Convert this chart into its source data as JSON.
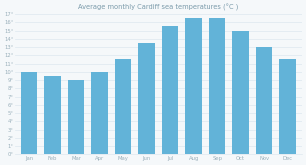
{
  "title": "Average monthly Cardiff sea temperatures (°C )",
  "months": [
    "Jan",
    "Feb",
    "Mar",
    "Apr",
    "May",
    "Jun",
    "Jul",
    "Aug",
    "Sep",
    "Oct",
    "Nov",
    "Dec"
  ],
  "values": [
    10,
    9.5,
    9,
    10,
    11.5,
    13.5,
    15.5,
    16.5,
    16.5,
    15,
    13,
    11.5
  ],
  "bar_color": "#62b3d8",
  "background_color": "#f5f8fa",
  "grid_color": "#dde8ef",
  "ylim": [
    0,
    17
  ],
  "yticks": [
    0,
    1,
    2,
    3,
    4,
    5,
    6,
    7,
    8,
    9,
    10,
    11,
    12,
    13,
    14,
    15,
    16,
    17
  ],
  "ytick_labels": [
    "0°",
    "1°",
    "2°",
    "3°",
    "4°",
    "5°",
    "6°",
    "7°",
    "8°",
    "9°",
    "10°",
    "11°",
    "12°",
    "13°",
    "14°",
    "15°",
    "16°",
    "17°"
  ],
  "title_fontsize": 4.8,
  "tick_fontsize": 3.8,
  "bar_width": 0.7,
  "figsize": [
    3.06,
    1.65
  ],
  "dpi": 100
}
